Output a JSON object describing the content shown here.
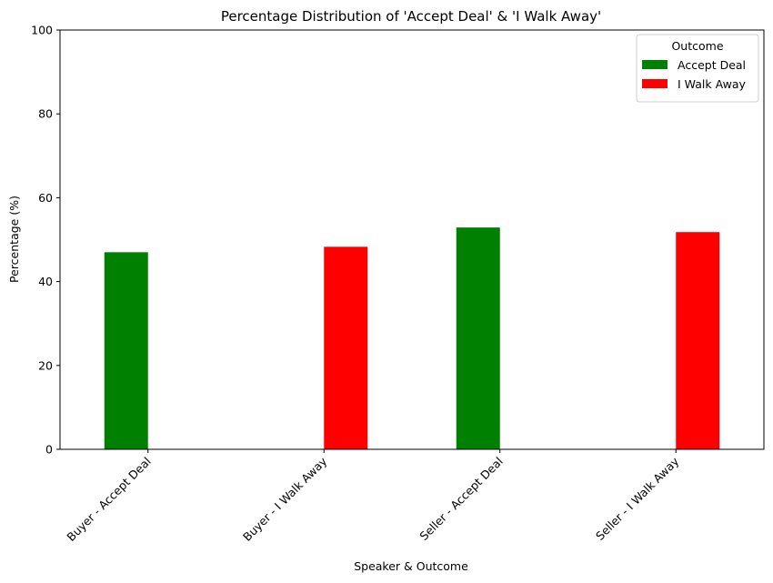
{
  "chart_data": {
    "type": "bar",
    "title": "Percentage Distribution of 'Accept Deal' & 'I Walk Away'",
    "xlabel": "Speaker & Outcome",
    "ylabel": "Percentage (%)",
    "categories": [
      "Buyer - Accept Deal",
      "Buyer - I Walk Away",
      "Seller - Accept Deal",
      "Seller - I Walk Away"
    ],
    "series": [
      {
        "name": "Accept Deal",
        "color": "#008000",
        "values": [
          47.0,
          null,
          52.9,
          null
        ]
      },
      {
        "name": "I Walk Away",
        "color": "#ff0000",
        "values": [
          null,
          48.3,
          null,
          51.8
        ]
      }
    ],
    "ylim": [
      0,
      100
    ],
    "yticks": [
      "0",
      "20",
      "40",
      "60",
      "80",
      "100"
    ],
    "grid": false,
    "legend": {
      "title": "Outcome",
      "placement": "top-right"
    }
  }
}
